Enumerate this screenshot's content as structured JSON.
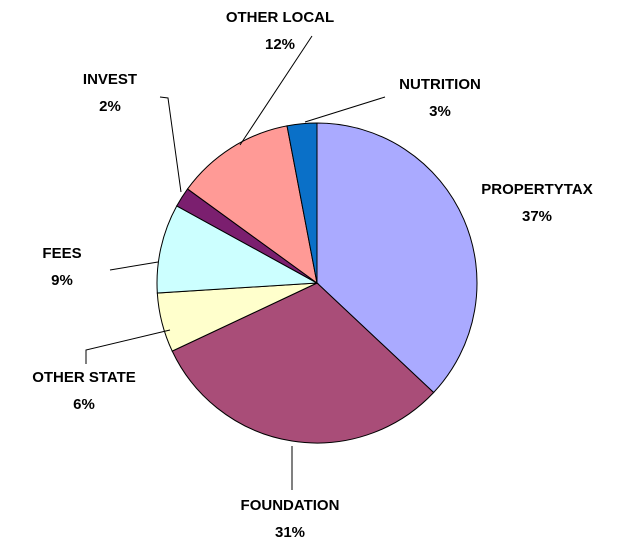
{
  "chart_data": {
    "type": "pie",
    "categories": [
      "PROPERTYTAX",
      "FOUNDATION",
      "OTHER STATE",
      "FEES",
      "INVEST",
      "OTHER LOCAL",
      "NUTRITION"
    ],
    "values": [
      37,
      31,
      6,
      9,
      2,
      12,
      3
    ],
    "value_labels": [
      "37%",
      "31%",
      "6%",
      "9%",
      "2%",
      "12%",
      "3%"
    ],
    "colors": [
      "#aaaaff",
      "#a94d78",
      "#ffffcc",
      "#ccffff",
      "#7b1f6f",
      "#ff9a96",
      "#0a70c8"
    ]
  }
}
